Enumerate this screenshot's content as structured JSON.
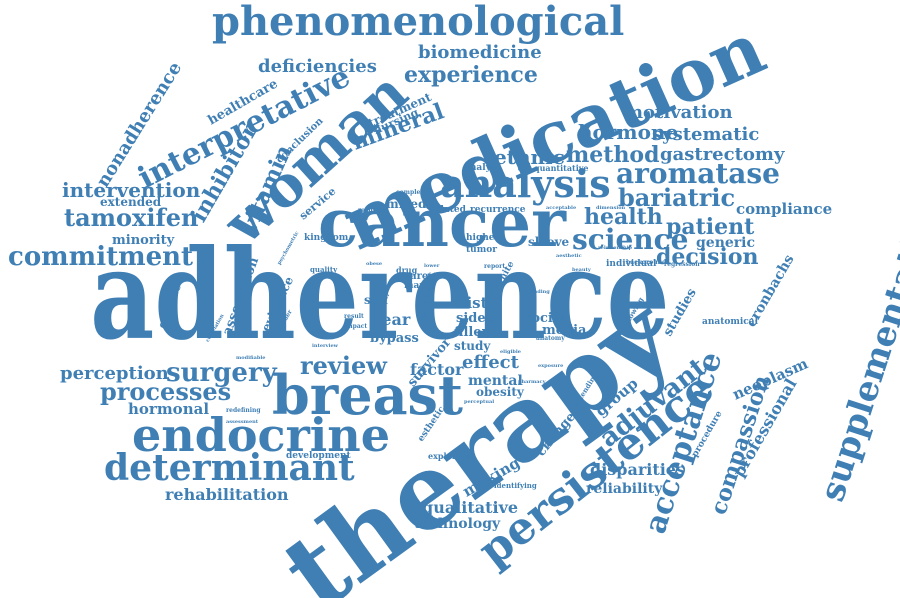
{
  "cloud": {
    "color": "#3f7fb4",
    "words": [
      "adherence",
      "therapy",
      "medication",
      "cancer",
      "breast",
      "woman",
      "endocrine",
      "persistence",
      "analysis",
      "phenomenological",
      "supplementation",
      "determinant",
      "interpretative",
      "science",
      "aromatase",
      "acceptance",
      "adjuvant",
      "commitment",
      "surgery",
      "tamoxifen",
      "processes",
      "review",
      "bariatric",
      "decision",
      "ethnic",
      "method",
      "patient",
      "health",
      "gastrectomy",
      "compassion",
      "intervention",
      "inhibitor",
      "vitamin",
      "mineral",
      "experience",
      "hormone",
      "systematic",
      "motivation",
      "biomedicine",
      "deficiencies",
      "nonadherence",
      "healthcare",
      "rehabilitation",
      "qualitative",
      "technology",
      "reliability",
      "disparities",
      "professional",
      "neoplasm",
      "compliance",
      "generic",
      "cronbachs",
      "studies",
      "anatomical",
      "perception",
      "hormonal",
      "making",
      "effect",
      "factor",
      "mental",
      "obesity",
      "social",
      "media",
      "group",
      "change",
      "year",
      "bypass",
      "survivor",
      "distr",
      "side",
      "filler",
      "study",
      "self",
      "association",
      "gastric",
      "evidence",
      "minority",
      "extended",
      "sleeve",
      "higher",
      "tumor",
      "kingdom",
      "mixed",
      "service",
      "related",
      "recurrence",
      "analyse",
      "quantitative",
      "individual",
      "background",
      "regression",
      "treatment",
      "nursing",
      "conclusion",
      "development",
      "exploring",
      "identifying",
      "esthetic",
      "procedure",
      "following",
      "extending",
      "resulting",
      "complete",
      "quality",
      "care",
      "drug",
      "mar",
      "scale",
      "result",
      "impact",
      "redefining",
      "assessment",
      "modifiable",
      "correlation",
      "disorder",
      "support",
      "primary",
      "obese",
      "psychometric",
      "pharmacy",
      "perceptual",
      "aesthetic",
      "relationship",
      "acceptable",
      "dimension",
      "beauty",
      "anatomy",
      "report",
      "lower",
      "white",
      "interview",
      "exposure",
      "eligible",
      "finding"
    ]
  }
}
